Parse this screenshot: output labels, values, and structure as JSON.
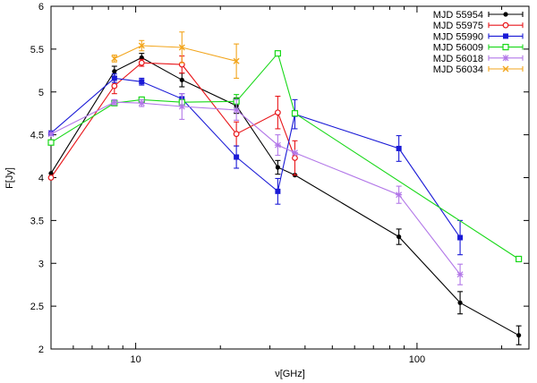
{
  "chart_data": {
    "type": "line",
    "title": "",
    "xlabel": "ν[GHz]",
    "ylabel": "F[Jy]",
    "xscale": "log",
    "xlim": [
      5,
      250
    ],
    "ylim": [
      2,
      6
    ],
    "xticks": [
      {
        "value": 10,
        "label": "10"
      },
      {
        "value": 100,
        "label": "100"
      }
    ],
    "yticks": [
      {
        "value": 2,
        "label": "2"
      },
      {
        "value": 2.5,
        "label": "2.5"
      },
      {
        "value": 3,
        "label": "3"
      },
      {
        "value": 3.5,
        "label": "3.5"
      },
      {
        "value": 4,
        "label": "4"
      },
      {
        "value": 4.5,
        "label": "4.5"
      },
      {
        "value": 5,
        "label": "5"
      },
      {
        "value": 5.5,
        "label": "5.5"
      },
      {
        "value": 6,
        "label": "6"
      }
    ],
    "legend_position": "top-right",
    "grid": false,
    "series": [
      {
        "name": "MJD 55954",
        "color": "#000000",
        "marker": "filled-circle",
        "points": [
          {
            "x": 5.0,
            "y": 4.05,
            "err": 0
          },
          {
            "x": 8.4,
            "y": 5.24,
            "err": 0.06
          },
          {
            "x": 10.5,
            "y": 5.4,
            "err": 0.05
          },
          {
            "x": 14.6,
            "y": 5.14,
            "err": 0.08
          },
          {
            "x": 22.8,
            "y": 4.84,
            "err": 0.09
          },
          {
            "x": 32.0,
            "y": 4.12,
            "err": 0.08
          },
          {
            "x": 36.8,
            "y": 4.03,
            "err": 0
          },
          {
            "x": 86.2,
            "y": 3.31,
            "err": 0.09
          },
          {
            "x": 142.3,
            "y": 2.54,
            "err": 0.13
          },
          {
            "x": 230.0,
            "y": 2.16,
            "err": 0.11
          }
        ]
      },
      {
        "name": "MJD 55975",
        "color": "#e8171b",
        "marker": "open-circle",
        "points": [
          {
            "x": 5.0,
            "y": 4.0,
            "err": 0
          },
          {
            "x": 8.4,
            "y": 5.07,
            "err": 0.09
          },
          {
            "x": 10.5,
            "y": 5.34,
            "err": 0.04
          },
          {
            "x": 14.6,
            "y": 5.32,
            "err": 0.1
          },
          {
            "x": 22.8,
            "y": 4.51,
            "err": 0.14
          },
          {
            "x": 32.0,
            "y": 4.76,
            "err": 0.19
          },
          {
            "x": 36.8,
            "y": 4.23,
            "err": 0.2
          }
        ]
      },
      {
        "name": "MJD 55990",
        "color": "#1a1ad6",
        "marker": "filled-square",
        "points": [
          {
            "x": 5.0,
            "y": 4.52,
            "err": 0
          },
          {
            "x": 8.4,
            "y": 5.16,
            "err": 0.05
          },
          {
            "x": 10.5,
            "y": 5.12,
            "err": 0.04
          },
          {
            "x": 14.6,
            "y": 4.92,
            "err": 0.06
          },
          {
            "x": 22.8,
            "y": 4.24,
            "err": 0.13
          },
          {
            "x": 32.0,
            "y": 3.84,
            "err": 0.15
          },
          {
            "x": 36.8,
            "y": 4.74,
            "err": 0.17
          },
          {
            "x": 86.2,
            "y": 4.34,
            "err": 0.15
          },
          {
            "x": 142.3,
            "y": 3.3,
            "err": 0.2
          }
        ]
      },
      {
        "name": "MJD 56009",
        "color": "#18d818",
        "marker": "open-square",
        "points": [
          {
            "x": 5.0,
            "y": 4.41,
            "err": 0
          },
          {
            "x": 8.4,
            "y": 4.87,
            "err": 0
          },
          {
            "x": 10.5,
            "y": 4.91,
            "err": 0.02
          },
          {
            "x": 14.6,
            "y": 4.88,
            "err": 0
          },
          {
            "x": 22.8,
            "y": 4.89,
            "err": 0.08
          },
          {
            "x": 32.0,
            "y": 5.45,
            "err": 0
          },
          {
            "x": 36.8,
            "y": 4.75,
            "err": 0
          },
          {
            "x": 230.0,
            "y": 3.05,
            "err": 0
          }
        ]
      },
      {
        "name": "MJD 56018",
        "color": "#b277e8",
        "marker": "star",
        "points": [
          {
            "x": 5.0,
            "y": 4.51,
            "err": 0
          },
          {
            "x": 8.4,
            "y": 4.88,
            "err": 0.03
          },
          {
            "x": 10.5,
            "y": 4.87,
            "err": 0.04
          },
          {
            "x": 14.6,
            "y": 4.83,
            "err": 0.15
          },
          {
            "x": 22.8,
            "y": 4.79,
            "err": 0.12
          },
          {
            "x": 32.0,
            "y": 4.38,
            "err": 0.12
          },
          {
            "x": 36.8,
            "y": 4.29,
            "err": 0
          },
          {
            "x": 86.2,
            "y": 3.8,
            "err": 0.1
          },
          {
            "x": 142.3,
            "y": 2.87,
            "err": 0.12
          }
        ]
      },
      {
        "name": "MJD 56034",
        "color": "#f2a51c",
        "marker": "cross",
        "points": [
          {
            "x": 8.4,
            "y": 5.39,
            "err": 0.04
          },
          {
            "x": 10.5,
            "y": 5.54,
            "err": 0.06
          },
          {
            "x": 14.6,
            "y": 5.52,
            "err": 0.18
          },
          {
            "x": 22.8,
            "y": 5.36,
            "err": 0.2
          }
        ]
      }
    ]
  }
}
